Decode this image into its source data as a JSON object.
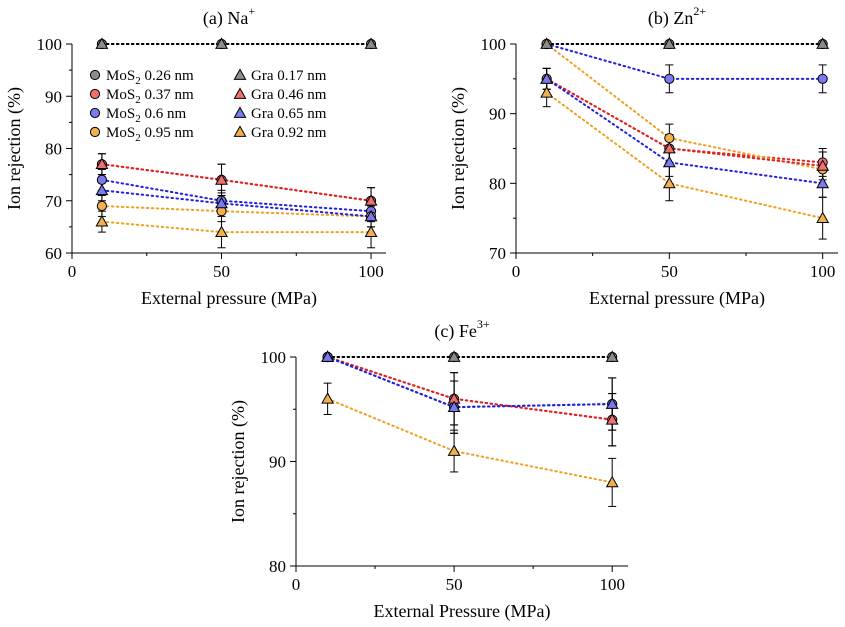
{
  "colors": {
    "mos2_026": "#8c8c8c",
    "mos2_037": "#f07070",
    "mos2_060": "#7a7af0",
    "mos2_095": "#f0b050",
    "gra_017": "#8c8c8c",
    "gra_046": "#f07070",
    "gra_065": "#7a7af0",
    "gra_092": "#f0b050",
    "line_black": "#000000",
    "line_red": "#e02020",
    "line_blue": "#2020e0",
    "line_orange": "#f0a020"
  },
  "legend": [
    {
      "key": "mos2_026",
      "marker": "circle",
      "prefix": "MoS",
      "sub": "2",
      "suffix": " 0.26 nm"
    },
    {
      "key": "mos2_037",
      "marker": "circle",
      "prefix": "MoS",
      "sub": "2",
      "suffix": " 0.37 nm"
    },
    {
      "key": "mos2_060",
      "marker": "circle",
      "prefix": "MoS",
      "sub": "2",
      "suffix": " 0.6 nm"
    },
    {
      "key": "mos2_095",
      "marker": "circle",
      "prefix": "MoS",
      "sub": "2",
      "suffix": " 0.95 nm"
    },
    {
      "key": "gra_017",
      "marker": "triangle",
      "prefix": "Gra 0.17 nm",
      "sub": "",
      "suffix": ""
    },
    {
      "key": "gra_046",
      "marker": "triangle",
      "prefix": "Gra 0.46 nm",
      "sub": "",
      "suffix": ""
    },
    {
      "key": "gra_065",
      "marker": "triangle",
      "prefix": "Gra 0.65 nm",
      "sub": "",
      "suffix": ""
    },
    {
      "key": "gra_092",
      "marker": "triangle",
      "prefix": "Gra 0.92 nm",
      "sub": "",
      "suffix": ""
    }
  ],
  "chart_data": [
    {
      "type": "line",
      "title": "(a)  Na",
      "title_sup": "+",
      "xlabel": "External pressure (MPa)",
      "ylabel": "Ion rejection (%)",
      "xlim": [
        0,
        105
      ],
      "ylim": [
        60,
        100
      ],
      "xticks": [
        0,
        50,
        100
      ],
      "yticks": [
        60,
        70,
        80,
        90,
        100
      ],
      "x": [
        10,
        50,
        100
      ],
      "series": [
        {
          "name": "MoS2 0.26 nm",
          "marker": "circle",
          "color_key": "mos2_026",
          "line_key": "line_black",
          "values": [
            100,
            100,
            100
          ],
          "err": [
            0,
            0,
            0
          ]
        },
        {
          "name": "MoS2 0.37 nm",
          "marker": "circle",
          "color_key": "mos2_037",
          "line_key": "line_red",
          "values": [
            77,
            74,
            70
          ],
          "err": [
            2,
            3,
            2.5
          ]
        },
        {
          "name": "MoS2 0.6 nm",
          "marker": "circle",
          "color_key": "mos2_060",
          "line_key": "line_blue",
          "values": [
            74,
            70,
            68
          ],
          "err": [
            2,
            2,
            2
          ]
        },
        {
          "name": "MoS2 0.95 nm",
          "marker": "circle",
          "color_key": "mos2_095",
          "line_key": "line_orange",
          "values": [
            69,
            68,
            67
          ],
          "err": [
            2,
            2,
            2
          ]
        },
        {
          "name": "Gra 0.17 nm",
          "marker": "triangle",
          "color_key": "gra_017",
          "line_key": "line_black",
          "values": [
            100,
            100,
            100
          ],
          "err": [
            0,
            0,
            0
          ]
        },
        {
          "name": "Gra 0.46 nm",
          "marker": "triangle",
          "color_key": "gra_046",
          "line_key": "line_red",
          "values": [
            77,
            74,
            70
          ],
          "err": [
            2,
            3,
            2.5
          ]
        },
        {
          "name": "Gra 0.65 nm",
          "marker": "triangle",
          "color_key": "gra_065",
          "line_key": "line_blue",
          "values": [
            72,
            69.5,
            67
          ],
          "err": [
            2,
            2,
            2
          ]
        },
        {
          "name": "Gra 0.92 nm",
          "marker": "triangle",
          "color_key": "gra_092",
          "line_key": "line_orange",
          "values": [
            66,
            64,
            64
          ],
          "err": [
            2,
            3,
            3
          ]
        }
      ]
    },
    {
      "type": "line",
      "title": "(b)  Zn",
      "title_sup": "2+",
      "xlabel": "External pressure (MPa)",
      "ylabel": "Ion rejection (%)",
      "xlim": [
        0,
        105
      ],
      "ylim": [
        70,
        100
      ],
      "xticks": [
        0,
        50,
        100
      ],
      "yticks": [
        70,
        80,
        90,
        100
      ],
      "x": [
        10,
        50,
        100
      ],
      "series": [
        {
          "name": "MoS2 0.26 nm",
          "marker": "circle",
          "color_key": "mos2_026",
          "line_key": "line_black",
          "values": [
            100,
            100,
            100
          ],
          "err": [
            0,
            0,
            0
          ]
        },
        {
          "name": "MoS2 0.37 nm",
          "marker": "circle",
          "color_key": "mos2_037",
          "line_key": "line_red",
          "values": [
            95,
            85,
            83
          ],
          "err": [
            1.5,
            2,
            2
          ]
        },
        {
          "name": "MoS2 0.6 nm",
          "marker": "circle",
          "color_key": "mos2_060",
          "line_key": "line_blue",
          "values": [
            100,
            95,
            95
          ],
          "err": [
            0,
            2,
            2
          ]
        },
        {
          "name": "MoS2 0.95 nm",
          "marker": "circle",
          "color_key": "mos2_095",
          "line_key": "line_orange",
          "values": [
            100,
            86.5,
            82
          ],
          "err": [
            0,
            2,
            2.5
          ]
        },
        {
          "name": "Gra 0.17 nm",
          "marker": "triangle",
          "color_key": "gra_017",
          "line_key": "line_black",
          "values": [
            100,
            100,
            100
          ],
          "err": [
            0,
            0,
            0
          ]
        },
        {
          "name": "Gra 0.46 nm",
          "marker": "triangle",
          "color_key": "gra_046",
          "line_key": "line_red",
          "values": [
            95,
            85,
            82.5
          ],
          "err": [
            1.5,
            2,
            2
          ]
        },
        {
          "name": "Gra 0.65 nm",
          "marker": "triangle",
          "color_key": "gra_065",
          "line_key": "line_blue",
          "values": [
            95,
            83,
            80
          ],
          "err": [
            1.5,
            2,
            2
          ]
        },
        {
          "name": "Gra 0.92 nm",
          "marker": "triangle",
          "color_key": "gra_092",
          "line_key": "line_orange",
          "values": [
            93,
            80,
            75
          ],
          "err": [
            2,
            2.5,
            3
          ]
        }
      ]
    },
    {
      "type": "line",
      "title": "(c)  Fe",
      "title_sup": "3+",
      "xlabel": "External Pressure (MPa)",
      "ylabel": "Ion rejection (%)",
      "xlim": [
        0,
        105
      ],
      "ylim": [
        80,
        100
      ],
      "xticks": [
        0,
        50,
        100
      ],
      "yticks": [
        80,
        90,
        100
      ],
      "x": [
        10,
        50,
        100
      ],
      "series": [
        {
          "name": "MoS2 0.26 nm",
          "marker": "circle",
          "color_key": "mos2_026",
          "line_key": "line_black",
          "values": [
            100,
            100,
            100
          ],
          "err": [
            0,
            0,
            0
          ]
        },
        {
          "name": "MoS2 0.37 nm",
          "marker": "circle",
          "color_key": "mos2_037",
          "line_key": "line_red",
          "values": [
            100,
            96,
            94
          ],
          "err": [
            0,
            2.5,
            2.5
          ]
        },
        {
          "name": "MoS2 0.6 nm",
          "marker": "circle",
          "color_key": "mos2_060",
          "line_key": "line_blue",
          "values": [
            100,
            95.2,
            95.5
          ],
          "err": [
            0,
            2.5,
            2.5
          ]
        },
        {
          "name": "Gra 0.17 nm",
          "marker": "triangle",
          "color_key": "gra_017",
          "line_key": "line_black",
          "values": [
            100,
            100,
            100
          ],
          "err": [
            0,
            0,
            0
          ]
        },
        {
          "name": "Gra 0.46 nm",
          "marker": "triangle",
          "color_key": "gra_046",
          "line_key": "line_red",
          "values": [
            100,
            96,
            94
          ],
          "err": [
            0,
            2.5,
            2.5
          ]
        },
        {
          "name": "Gra 0.65 nm",
          "marker": "triangle",
          "color_key": "gra_065",
          "line_key": "line_blue",
          "values": [
            100,
            95.2,
            95.5
          ],
          "err": [
            0,
            2.5,
            2.5
          ]
        },
        {
          "name": "Gra 0.92 nm",
          "marker": "triangle",
          "color_key": "gra_092",
          "line_key": "line_orange",
          "values": [
            96,
            91,
            88
          ],
          "err": [
            1.5,
            2,
            2.3
          ]
        }
      ]
    }
  ]
}
